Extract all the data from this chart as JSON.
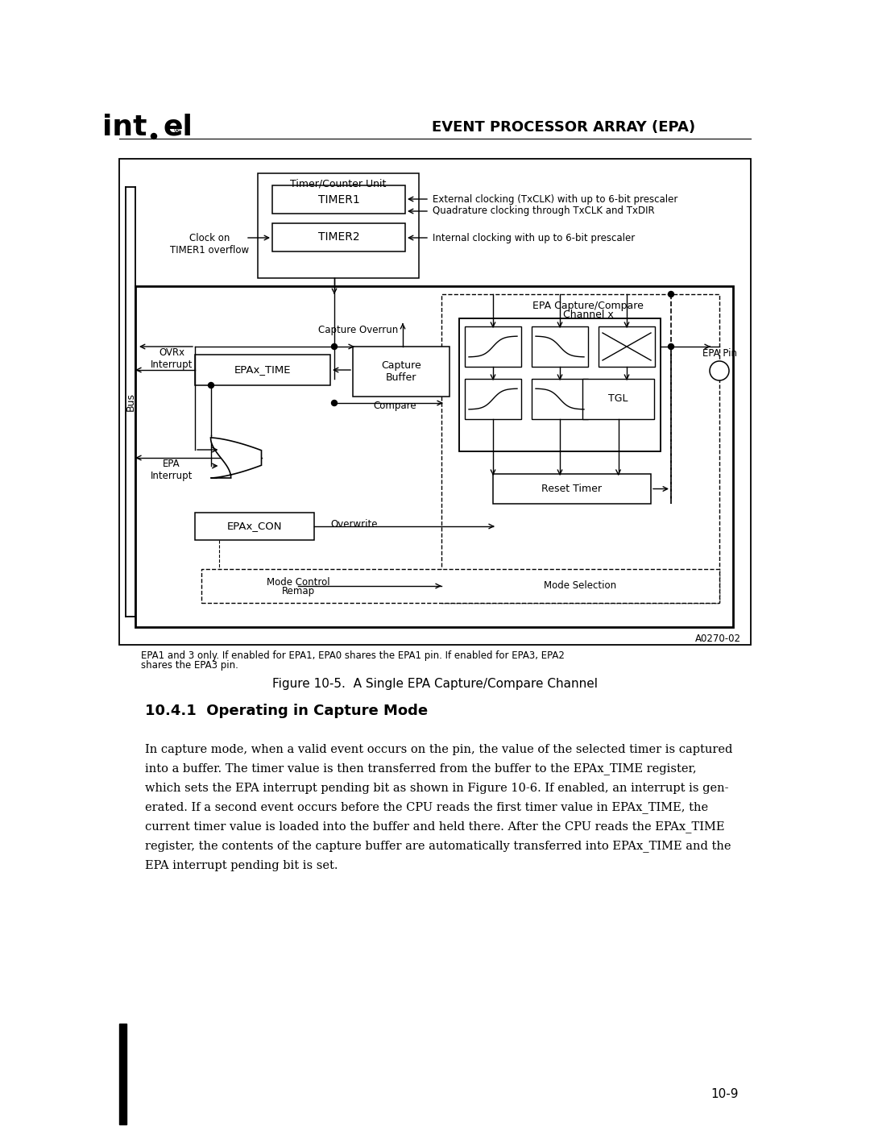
{
  "header_title": "EVENT PROCESSOR ARRAY (EPA)",
  "section_title": "10.4.1  Operating in Capture Mode",
  "figure_caption": "Figure 10-5.  A Single EPA Capture/Compare Channel",
  "figure_note_line1": "EPA1 and 3 only. If enabled for EPA1, EPA0 shares the EPA1 pin. If enabled for EPA3, EPA2",
  "figure_note_line2": "shares the EPA3 pin.",
  "figure_ref": "A0270-02",
  "page_number": "10-9",
  "body_text_lines": [
    "In capture mode, when a valid event occurs on the pin, the value of the selected timer is captured",
    "into a buffer. The timer value is then transferred from the buffer to the EPAx_TIME register,",
    "which sets the EPA interrupt pending bit as shown in Figure 10-6. If enabled, an interrupt is gen-",
    "erated. If a second event occurs before the CPU reads the first timer value in EPAx_TIME, the",
    "current timer value is loaded into the buffer and held there. After the CPU reads the EPAx_TIME",
    "register, the contents of the capture buffer are automatically transferred into EPAx_TIME and the",
    "EPA interrupt pending bit is set."
  ]
}
